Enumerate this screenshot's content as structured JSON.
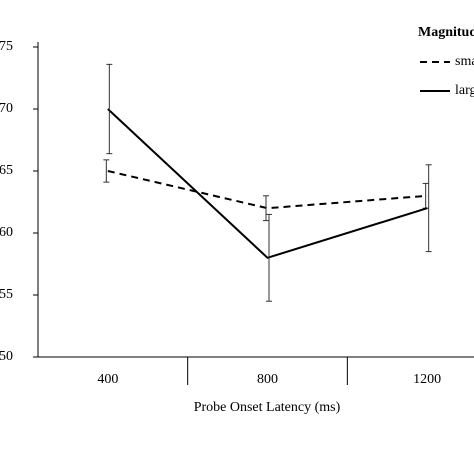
{
  "chart_data": {
    "type": "line",
    "x_label": "Probe Onset Latency (ms)",
    "categories": [
      "400",
      "800",
      "1200"
    ],
    "ylim": [
      50,
      75
    ],
    "yticks": [
      50,
      55,
      60,
      65,
      70,
      75
    ],
    "legend_title": "Magnitude",
    "legend": "top-right",
    "series": [
      {
        "name": "small",
        "color": "#000000",
        "dash": true,
        "values": [
          65,
          62,
          63
        ],
        "errors": [
          0.9,
          1.0,
          1.0
        ]
      },
      {
        "name": "large",
        "color": "#000000",
        "dash": false,
        "values": [
          70,
          58,
          62
        ],
        "errors": [
          3.6,
          3.5,
          3.5
        ]
      }
    ]
  }
}
